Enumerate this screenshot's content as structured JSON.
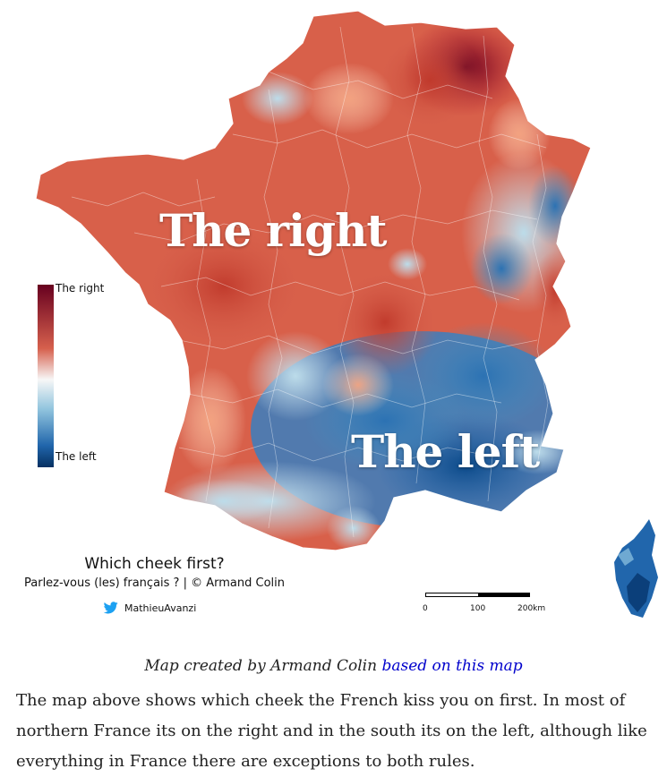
{
  "map": {
    "big_label_right": "The right",
    "big_label_left": "The left",
    "legend": {
      "top_label": "The right",
      "bottom_label": "The left",
      "colors": [
        "#67001f",
        "#d6604d",
        "#f7f7f7",
        "#92c5de",
        "#2166ac",
        "#053061"
      ]
    },
    "title": "Which cheek first?",
    "subtitle": "Parlez-vous (les) français ? | © Armand Colin",
    "twitter_icon": "twitter-bird-icon",
    "twitter_handle": "MathieuAvanzi",
    "scale": {
      "ticks": [
        "0",
        "100",
        "200km"
      ]
    }
  },
  "caption": {
    "text": "Map created by Armand Colin ",
    "link_text": "based on this map"
  },
  "body": {
    "paragraph": "The map above shows which cheek the French kiss you on first. In most of northern France its on the right and in the south its on the left, although like everything in France there are exceptions to both rules."
  }
}
